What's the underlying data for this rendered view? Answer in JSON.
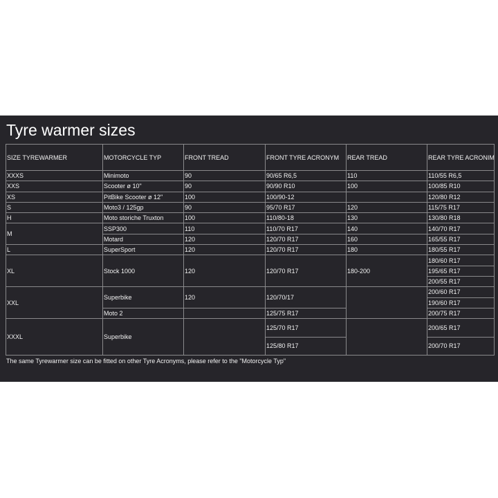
{
  "title": "Tyre warmer sizes",
  "headers": [
    "SIZE TYREWARMER",
    "MOTORCYCLE TYP",
    "FRONT TREAD",
    "FRONT TYRE ACRONYM",
    "REAR TREAD",
    "REAR TYRE ACRONIM"
  ],
  "rows": [
    {
      "cells": [
        {
          "t": "XXXS"
        },
        {
          "t": "Minimoto"
        },
        {
          "t": "90"
        },
        {
          "t": "90/65 R6,5"
        },
        {
          "t": "110"
        },
        {
          "t": "110/55 R6,5"
        }
      ]
    },
    {
      "cells": [
        {
          "t": "XXS"
        },
        {
          "t": "Scooter ø 10\""
        },
        {
          "t": "90"
        },
        {
          "t": "90/90 R10"
        },
        {
          "t": "100"
        },
        {
          "t": "100/85 R10"
        }
      ]
    },
    {
      "cells": [
        {
          "t": "XS"
        },
        {
          "t": "PitBike Scooter ø 12\""
        },
        {
          "t": "100"
        },
        {
          "t": "100/90-12"
        },
        {
          "t": ""
        },
        {
          "t": "120/80 R12"
        }
      ]
    },
    {
      "cells": [
        {
          "t": "S"
        },
        {
          "t": "Moto3 / 125gp"
        },
        {
          "t": "90"
        },
        {
          "t": "95/70 R17"
        },
        {
          "t": "120"
        },
        {
          "t": "115/75 R17"
        }
      ]
    },
    {
      "cells": [
        {
          "t": "H"
        },
        {
          "t": "Moto storiche Truxton"
        },
        {
          "t": "100"
        },
        {
          "t": "110/80-18"
        },
        {
          "t": "130"
        },
        {
          "t": "130/80 R18"
        }
      ]
    },
    {
      "cells": [
        {
          "t": "M",
          "rs": 2
        },
        {
          "t": "SSP300"
        },
        {
          "t": "110"
        },
        {
          "t": "110/70 R17"
        },
        {
          "t": "140"
        },
        {
          "t": "140/70 R17"
        }
      ]
    },
    {
      "cells": [
        {
          "t": "Motard"
        },
        {
          "t": "120"
        },
        {
          "t": "120/70 R17"
        },
        {
          "t": "160"
        },
        {
          "t": "165/55 R17"
        }
      ]
    },
    {
      "cells": [
        {
          "t": "L"
        },
        {
          "t": "SuperSport"
        },
        {
          "t": "120"
        },
        {
          "t": "120/70 R17"
        },
        {
          "t": "180"
        },
        {
          "t": "180/55 R17"
        }
      ]
    },
    {
      "cells": [
        {
          "t": "XL",
          "rs": 3
        },
        {
          "t": "Stock 1000",
          "rs": 3
        },
        {
          "t": "120",
          "rs": 3
        },
        {
          "t": "120/70 R17",
          "rs": 3
        },
        {
          "t": "180-200",
          "rs": 3
        },
        {
          "t": "180/60 R17"
        }
      ]
    },
    {
      "cells": [
        {
          "t": "195/65 R17"
        }
      ]
    },
    {
      "cells": [
        {
          "t": "200/55 R17"
        }
      ]
    },
    {
      "cells": [
        {
          "t": "XXL",
          "rs": 3
        },
        {
          "t": "Superbike",
          "rs": 2
        },
        {
          "t": "120",
          "rs": 2
        },
        {
          "t": "120/70/17",
          "rs": 2
        },
        {
          "t": "",
          "rs": 3
        },
        {
          "t": "200/60 R17"
        }
      ]
    },
    {
      "cells": [
        {
          "t": "190/60 R17"
        }
      ]
    },
    {
      "cells": [
        {
          "t": "Moto 2"
        },
        {
          "t": ""
        },
        {
          "t": "125/75 R17"
        },
        {
          "t": "200/75 R17"
        }
      ]
    },
    {
      "tall": true,
      "cells": [
        {
          "t": "XXXL",
          "rs": 2
        },
        {
          "t": "Superbike",
          "rs": 2
        },
        {
          "t": "",
          "rs": 2
        },
        {
          "t": "125/70 R17"
        },
        {
          "t": "",
          "rs": 2
        },
        {
          "t": "200/65 R17"
        }
      ]
    },
    {
      "tall": true,
      "cells": [
        {
          "t": "125/80 R17"
        },
        {
          "t": "200/70 R17"
        }
      ]
    }
  ],
  "note": "The same Tyrewarmer size can be fitted on other Tyre Acronyms, please refer to the \"Motorcycle Typ\""
}
